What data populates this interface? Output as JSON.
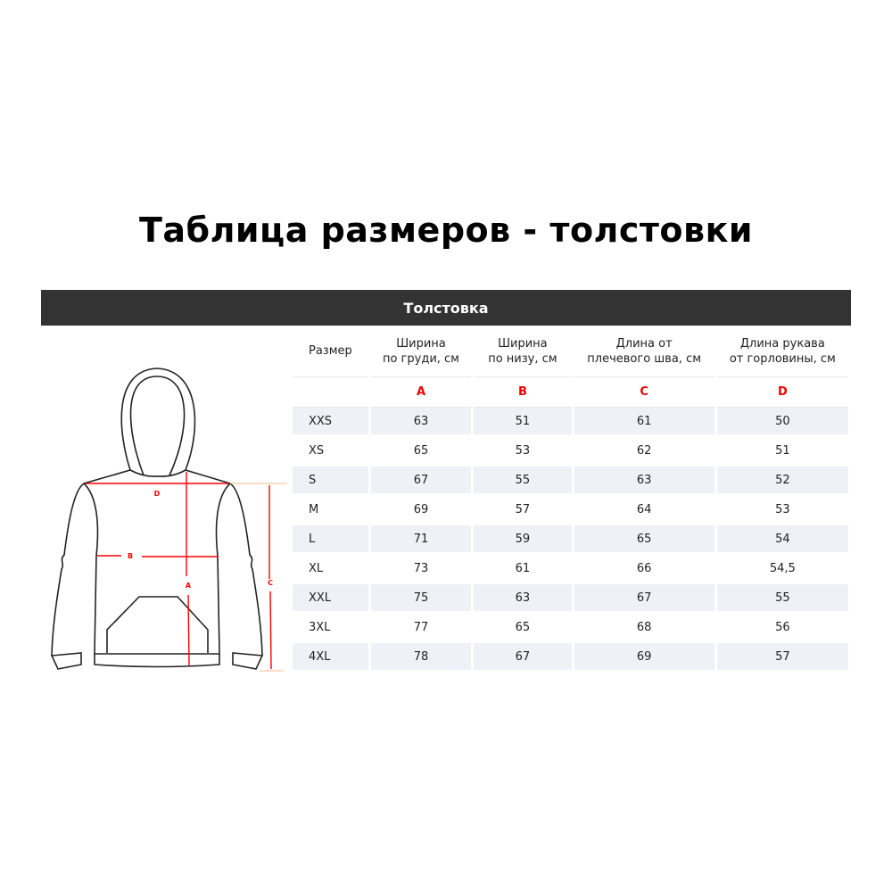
{
  "title": "Таблица размеров - толстовки",
  "section": "Толстовка",
  "diagram_labels": {
    "a": "A",
    "b": "B",
    "c": "C",
    "d": "D"
  },
  "colors": {
    "header_bar": "#333333",
    "measure_lines": "#ff0000",
    "letters": "#ee0000",
    "row_shade": "#eef1f6"
  },
  "table": {
    "headers": [
      {
        "l1": "Размер",
        "l2": ""
      },
      {
        "l1": "Ширина",
        "l2": "по груди, см"
      },
      {
        "l1": "Ширина",
        "l2": "по низу, см"
      },
      {
        "l1": "Длина от",
        "l2": "плечевого шва, см"
      },
      {
        "l1": "Длина рукава",
        "l2": "от горловины, см"
      }
    ],
    "letters": [
      "",
      "A",
      "B",
      "C",
      "D"
    ],
    "rows": [
      [
        "XXS",
        "63",
        "51",
        "61",
        "50"
      ],
      [
        "XS",
        "65",
        "53",
        "62",
        "51"
      ],
      [
        "S",
        "67",
        "55",
        "63",
        "52"
      ],
      [
        "M",
        "69",
        "57",
        "64",
        "53"
      ],
      [
        "L",
        "71",
        "59",
        "65",
        "54"
      ],
      [
        "XL",
        "73",
        "61",
        "66",
        "54,5"
      ],
      [
        "XXL",
        "75",
        "63",
        "67",
        "55"
      ],
      [
        "3XL",
        "77",
        "65",
        "68",
        "56"
      ],
      [
        "4XL",
        "78",
        "67",
        "69",
        "57"
      ]
    ]
  }
}
